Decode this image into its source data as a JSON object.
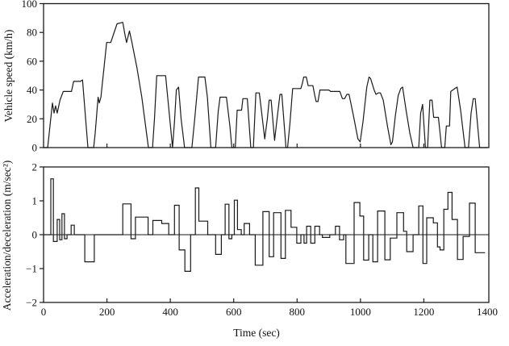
{
  "figure": {
    "background": "#ffffff",
    "line_color": "#1a1a1a",
    "text_color": "#111111"
  },
  "chart_data": [
    {
      "type": "line",
      "name": "vehicle-speed-profile",
      "ylabel": "Vehicle speed (km/h)",
      "xlabel": "",
      "ylim": [
        0,
        100
      ],
      "xlim": [
        0,
        1400
      ],
      "yticks": [
        0,
        20,
        40,
        60,
        80,
        100
      ],
      "xticks": [
        200,
        400,
        600,
        800,
        1000,
        1200
      ],
      "xticklabels": [],
      "grid": false,
      "legend": "none",
      "points": [
        [
          0,
          0
        ],
        [
          13,
          0
        ],
        [
          28,
          31
        ],
        [
          33,
          24
        ],
        [
          38,
          29
        ],
        [
          43,
          24
        ],
        [
          52,
          33
        ],
        [
          62,
          39
        ],
        [
          88,
          39
        ],
        [
          95,
          46
        ],
        [
          116,
          46
        ],
        [
          123,
          47
        ],
        [
          140,
          0
        ],
        [
          158,
          0
        ],
        [
          163,
          10
        ],
        [
          172,
          35
        ],
        [
          176,
          31
        ],
        [
          181,
          35
        ],
        [
          199,
          73
        ],
        [
          212,
          73
        ],
        [
          232,
          86
        ],
        [
          250,
          87
        ],
        [
          258,
          77
        ],
        [
          262,
          73
        ],
        [
          271,
          81
        ],
        [
          278,
          74
        ],
        [
          295,
          55
        ],
        [
          310,
          35
        ],
        [
          331,
          0
        ],
        [
          344,
          0
        ],
        [
          350,
          20
        ],
        [
          357,
          50
        ],
        [
          385,
          50
        ],
        [
          396,
          25
        ],
        [
          407,
          0
        ],
        [
          413,
          18
        ],
        [
          419,
          40
        ],
        [
          426,
          42
        ],
        [
          434,
          20
        ],
        [
          445,
          0
        ],
        [
          468,
          0
        ],
        [
          477,
          20
        ],
        [
          489,
          49
        ],
        [
          509,
          49
        ],
        [
          517,
          35
        ],
        [
          528,
          0
        ],
        [
          543,
          0
        ],
        [
          551,
          25
        ],
        [
          557,
          35
        ],
        [
          577,
          35
        ],
        [
          588,
          15
        ],
        [
          594,
          0
        ],
        [
          605,
          0
        ],
        [
          611,
          26
        ],
        [
          625,
          26
        ],
        [
          629,
          34
        ],
        [
          643,
          34
        ],
        [
          654,
          0
        ],
        [
          662,
          0
        ],
        [
          670,
          38
        ],
        [
          681,
          38
        ],
        [
          698,
          6
        ],
        [
          706,
          20
        ],
        [
          712,
          33
        ],
        [
          718,
          33
        ],
        [
          729,
          5
        ],
        [
          738,
          22
        ],
        [
          746,
          37
        ],
        [
          752,
          37
        ],
        [
          765,
          0
        ],
        [
          770,
          0
        ],
        [
          777,
          16
        ],
        [
          786,
          41
        ],
        [
          812,
          41
        ],
        [
          817,
          45
        ],
        [
          821,
          49
        ],
        [
          829,
          49
        ],
        [
          835,
          43
        ],
        [
          850,
          43
        ],
        [
          856,
          36
        ],
        [
          860,
          32
        ],
        [
          866,
          32
        ],
        [
          872,
          40
        ],
        [
          900,
          40
        ],
        [
          906,
          39
        ],
        [
          935,
          39
        ],
        [
          943,
          34
        ],
        [
          950,
          34
        ],
        [
          957,
          37
        ],
        [
          964,
          37
        ],
        [
          978,
          22
        ],
        [
          992,
          6
        ],
        [
          999,
          4
        ],
        [
          1008,
          18
        ],
        [
          1020,
          42
        ],
        [
          1027,
          49
        ],
        [
          1032,
          48
        ],
        [
          1043,
          40
        ],
        [
          1049,
          37
        ],
        [
          1056,
          38
        ],
        [
          1063,
          38
        ],
        [
          1072,
          33
        ],
        [
          1086,
          14
        ],
        [
          1096,
          2
        ],
        [
          1101,
          4
        ],
        [
          1110,
          22
        ],
        [
          1119,
          36
        ],
        [
          1127,
          41
        ],
        [
          1133,
          42
        ],
        [
          1144,
          26
        ],
        [
          1156,
          10
        ],
        [
          1166,
          0
        ],
        [
          1184,
          0
        ],
        [
          1190,
          24
        ],
        [
          1196,
          30
        ],
        [
          1205,
          0
        ],
        [
          1212,
          0
        ],
        [
          1219,
          33
        ],
        [
          1226,
          33
        ],
        [
          1231,
          21
        ],
        [
          1246,
          21
        ],
        [
          1256,
          0
        ],
        [
          1266,
          0
        ],
        [
          1271,
          15
        ],
        [
          1281,
          15
        ],
        [
          1285,
          39
        ],
        [
          1298,
          41
        ],
        [
          1305,
          42
        ],
        [
          1316,
          26
        ],
        [
          1330,
          0
        ],
        [
          1341,
          0
        ],
        [
          1349,
          24
        ],
        [
          1356,
          34
        ],
        [
          1362,
          34
        ],
        [
          1376,
          0
        ],
        [
          1400,
          0
        ]
      ]
    },
    {
      "type": "step",
      "name": "acceleration-profile",
      "ylabel": "Acceleration/deceleration (m/sec²)",
      "xlabel": "Time (sec)",
      "ylim": [
        -2,
        2
      ],
      "xlim": [
        0,
        1400
      ],
      "yticks": [
        -2,
        -1,
        0,
        1,
        2
      ],
      "xticks": [
        200,
        400,
        600,
        800,
        1000,
        1200
      ],
      "xticklabels": [
        "0",
        "200",
        "400",
        "600",
        "800",
        "1000",
        "1200",
        "1400"
      ],
      "xticklabel_positions": [
        0,
        200,
        400,
        600,
        800,
        1000,
        1200,
        1400
      ],
      "grid": false,
      "legend": "none",
      "zero_line": true,
      "steps": [
        [
          23,
          31,
          1.65
        ],
        [
          31,
          43,
          -0.2
        ],
        [
          43,
          51,
          0.45
        ],
        [
          51,
          58,
          -0.15
        ],
        [
          58,
          66,
          0.62
        ],
        [
          66,
          74,
          -0.12
        ],
        [
          87,
          97,
          0.28
        ],
        [
          130,
          160,
          -0.8
        ],
        [
          250,
          276,
          0.91
        ],
        [
          276,
          290,
          -0.12
        ],
        [
          290,
          330,
          0.52
        ],
        [
          345,
          373,
          0.42
        ],
        [
          373,
          395,
          0.33
        ],
        [
          413,
          428,
          0.87
        ],
        [
          428,
          446,
          -0.45
        ],
        [
          446,
          464,
          -1.08
        ],
        [
          479,
          490,
          1.38
        ],
        [
          490,
          518,
          0.4
        ],
        [
          543,
          561,
          -0.58
        ],
        [
          573,
          585,
          0.9
        ],
        [
          585,
          594,
          -0.12
        ],
        [
          602,
          612,
          1.02
        ],
        [
          612,
          624,
          0.15
        ],
        [
          633,
          650,
          0.33
        ],
        [
          668,
          692,
          -0.9
        ],
        [
          692,
          712,
          0.68
        ],
        [
          712,
          726,
          -0.65
        ],
        [
          726,
          749,
          0.65
        ],
        [
          749,
          763,
          -0.7
        ],
        [
          763,
          781,
          0.72
        ],
        [
          781,
          799,
          0.22
        ],
        [
          799,
          812,
          -0.25
        ],
        [
          822,
          830,
          -0.25
        ],
        [
          830,
          843,
          0.25
        ],
        [
          843,
          856,
          -0.25
        ],
        [
          856,
          871,
          0.25
        ],
        [
          880,
          903,
          -0.08
        ],
        [
          921,
          934,
          0.25
        ],
        [
          934,
          947,
          -0.15
        ],
        [
          954,
          980,
          -0.85
        ],
        [
          980,
          998,
          0.95
        ],
        [
          998,
          1010,
          0.55
        ],
        [
          1010,
          1026,
          -0.75
        ],
        [
          1039,
          1054,
          -0.8
        ],
        [
          1054,
          1077,
          0.7
        ],
        [
          1077,
          1094,
          -0.74
        ],
        [
          1094,
          1115,
          -0.1
        ],
        [
          1115,
          1136,
          0.65
        ],
        [
          1136,
          1146,
          0.1
        ],
        [
          1146,
          1166,
          -0.5
        ],
        [
          1184,
          1197,
          0.85
        ],
        [
          1197,
          1209,
          -0.85
        ],
        [
          1209,
          1230,
          0.5
        ],
        [
          1230,
          1243,
          0.35
        ],
        [
          1243,
          1251,
          -0.36
        ],
        [
          1251,
          1263,
          -0.45
        ],
        [
          1263,
          1276,
          0.75
        ],
        [
          1276,
          1289,
          1.25
        ],
        [
          1289,
          1306,
          0.45
        ],
        [
          1306,
          1324,
          -0.73
        ],
        [
          1324,
          1344,
          -0.05
        ],
        [
          1344,
          1362,
          0.93
        ],
        [
          1362,
          1393,
          -0.53
        ]
      ]
    }
  ]
}
